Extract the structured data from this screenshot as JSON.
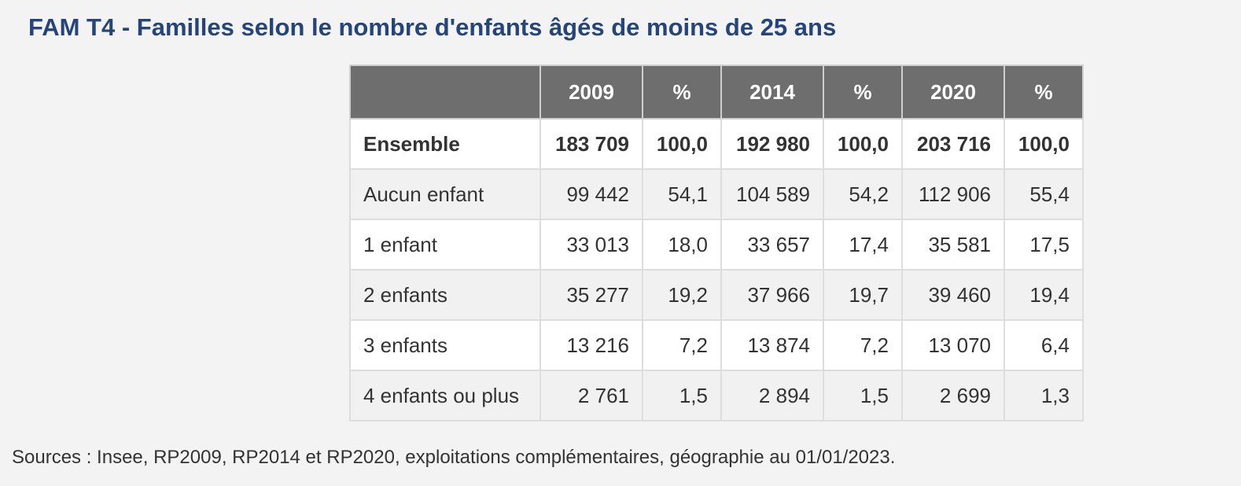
{
  "title": "FAM T4 - Familles selon le nombre d'enfants âgés de moins de 25 ans",
  "table": {
    "headers": [
      "",
      "2009",
      "%",
      "2014",
      "%",
      "2020",
      "%"
    ],
    "rows": [
      {
        "label": "Ensemble",
        "values": [
          "183 709",
          "100,0",
          "192 980",
          "100,0",
          "203 716",
          "100,0"
        ],
        "bold": true
      },
      {
        "label": "Aucun enfant",
        "values": [
          "99 442",
          "54,1",
          "104 589",
          "54,2",
          "112 906",
          "55,4"
        ],
        "bold": false
      },
      {
        "label": "1 enfant",
        "values": [
          "33 013",
          "18,0",
          "33 657",
          "17,4",
          "35 581",
          "17,5"
        ],
        "bold": false
      },
      {
        "label": "2 enfants",
        "values": [
          "35 277",
          "19,2",
          "37 966",
          "19,7",
          "39 460",
          "19,4"
        ],
        "bold": false
      },
      {
        "label": "3 enfants",
        "values": [
          "13 216",
          "7,2",
          "13 874",
          "7,2",
          "13 070",
          "6,4"
        ],
        "bold": false
      },
      {
        "label": "4 enfants ou plus",
        "values": [
          "2 761",
          "1,5",
          "2 894",
          "1,5",
          "2 699",
          "1,3"
        ],
        "bold": false
      }
    ]
  },
  "source": "Sources : Insee, RP2009, RP2014 et RP2020, exploitations complémentaires, géographie au 01/01/2023.",
  "colors": {
    "title": "#25457a",
    "header_background": "#6e6e6e",
    "page_background": "#f3f3f3"
  }
}
